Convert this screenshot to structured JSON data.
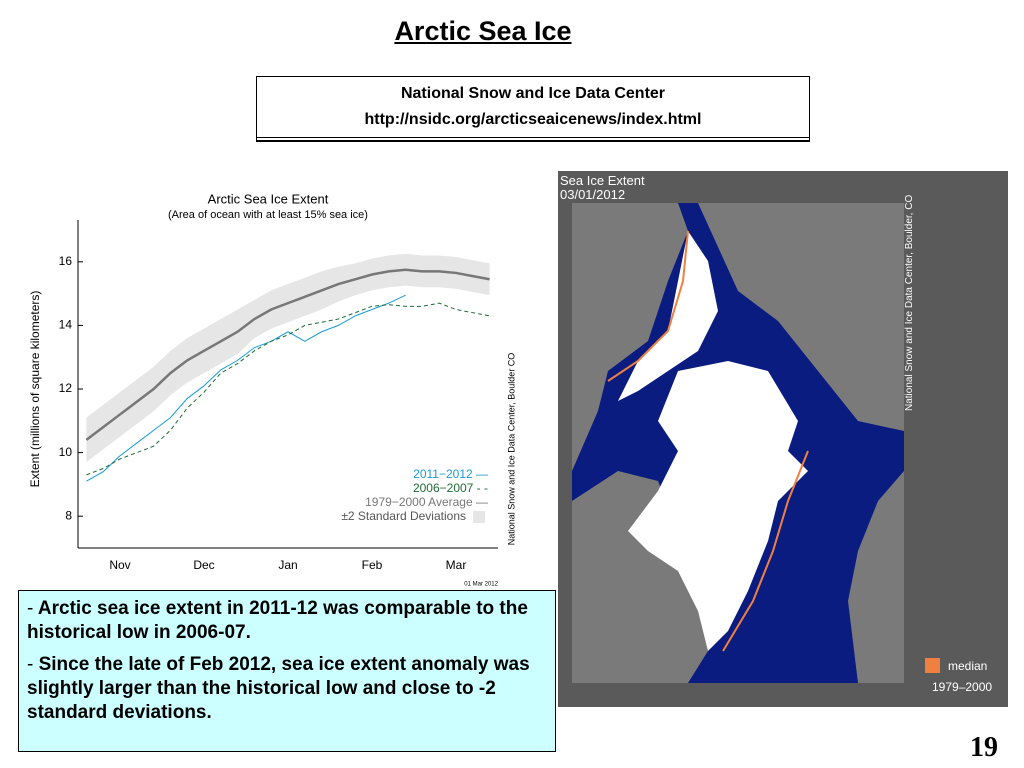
{
  "header": {
    "title": "Arctic Sea Ice"
  },
  "source": {
    "name": "National Snow and Ice Data Center",
    "url": "http://nsidc.org/arcticseaicenews/index.html"
  },
  "chart_data": {
    "type": "line",
    "title": "Arctic Sea Ice Extent",
    "subtitle": "(Area of ocean with at least 15% sea ice)",
    "ylabel": "Extent (millions of square kilometers)",
    "credit": "National Snow and Ice Data Center, Boulder CO",
    "date_stamp": "01 Mar 2012",
    "categories": [
      null,
      null,
      "Nov",
      null,
      null,
      null,
      null,
      "Dec",
      null,
      null,
      null,
      null,
      "Jan",
      null,
      null,
      null,
      null,
      "Feb",
      null,
      null,
      null,
      null,
      "Mar",
      null,
      null
    ],
    "ylim": [
      7,
      17
    ],
    "yticks": [
      8,
      10,
      12,
      14,
      16
    ],
    "band": {
      "name": "±2 Standard Deviations",
      "color": "#e6e6e6",
      "upper": [
        11.1,
        11.5,
        11.9,
        12.3,
        12.7,
        13.2,
        13.6,
        13.9,
        14.2,
        14.5,
        14.8,
        15.1,
        15.3,
        15.5,
        15.7,
        15.85,
        15.95,
        16.1,
        16.2,
        16.25,
        16.2,
        16.2,
        16.15,
        16.05,
        15.95
      ],
      "lower": [
        9.7,
        10.1,
        10.5,
        10.9,
        11.3,
        11.8,
        12.2,
        12.5,
        12.8,
        13.1,
        13.6,
        13.9,
        14.1,
        14.3,
        14.5,
        14.75,
        14.95,
        15.1,
        15.2,
        15.25,
        15.2,
        15.2,
        15.15,
        15.05,
        14.95
      ]
    },
    "series": [
      {
        "name": "2011−2012 —",
        "color": "#1a9ad6",
        "style": "solid",
        "values": [
          9.1,
          9.4,
          9.9,
          10.3,
          10.7,
          11.1,
          11.7,
          12.1,
          12.6,
          12.9,
          13.3,
          13.5,
          13.8,
          13.5,
          13.8,
          14.0,
          14.3,
          14.5,
          14.7,
          14.95,
          null,
          null,
          null,
          null,
          null
        ]
      },
      {
        "name": "2006−2007 - -",
        "color": "#1f6b35",
        "style": "dashed",
        "values": [
          9.3,
          9.5,
          9.8,
          10.0,
          10.2,
          10.7,
          11.4,
          11.9,
          12.5,
          12.8,
          13.2,
          13.5,
          13.7,
          14.0,
          14.1,
          14.2,
          14.4,
          14.6,
          14.65,
          14.6,
          14.6,
          14.7,
          14.5,
          14.4,
          14.3
        ]
      },
      {
        "name": "1979−2000 Average —",
        "color": "#777777",
        "style": "thick",
        "values": [
          10.4,
          10.8,
          11.2,
          11.6,
          12.0,
          12.5,
          12.9,
          13.2,
          13.5,
          13.8,
          14.2,
          14.5,
          14.7,
          14.9,
          15.1,
          15.3,
          15.45,
          15.6,
          15.7,
          15.75,
          15.7,
          15.7,
          15.65,
          15.55,
          15.45
        ]
      }
    ]
  },
  "map": {
    "title": "Sea Ice Extent",
    "date": "03/01/2012",
    "credit": "National Snow and Ice Data Center, Boulder, CO",
    "legend": "median",
    "legend_period": "1979–2000"
  },
  "bullets": [
    {
      "marker": "-",
      "text": "Arctic sea ice extent in 2011-12 was comparable to the historical low in 2006-07."
    },
    {
      "marker": "-",
      "text": "Since the late of Feb 2012, sea ice extent anomaly was slightly larger than the historical low and close to -2 standard deviations."
    }
  ],
  "page_number": "19"
}
